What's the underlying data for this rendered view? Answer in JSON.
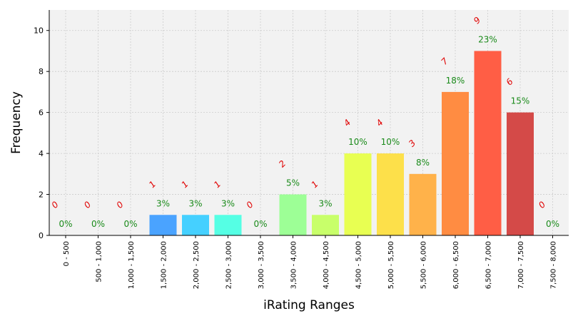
{
  "chart_data": {
    "type": "bar",
    "title": "",
    "xlabel": "iRating Ranges",
    "ylabel": "Frequency",
    "ylim": [
      0,
      11
    ],
    "yticks": [
      0,
      2,
      4,
      6,
      8,
      10
    ],
    "grid": true,
    "categories": [
      "0 - 500",
      "500 - 1,000",
      "1,000 - 1,500",
      "1,500 - 2,000",
      "2,000 - 2,500",
      "2,500 - 3,000",
      "3,000 - 3,500",
      "3,500 - 4,000",
      "4,000 - 4,500",
      "4,500 - 5,000",
      "5,000 - 5,500",
      "5,500 - 6,000",
      "6,000 - 6,500",
      "6,500 - 7,000",
      "7,000 - 7,500",
      "7,500 - 8,000"
    ],
    "values": [
      0,
      0,
      0,
      1,
      1,
      1,
      0,
      2,
      1,
      4,
      4,
      3,
      7,
      9,
      6,
      0
    ],
    "count_labels": [
      "0",
      "0",
      "0",
      "1",
      "1",
      "1",
      "0",
      "2",
      "1",
      "4",
      "4",
      "3",
      "7",
      "9",
      "6",
      "0"
    ],
    "percent_labels": [
      "0%",
      "0%",
      "0%",
      "3%",
      "3%",
      "3%",
      "0%",
      "5%",
      "3%",
      "10%",
      "10%",
      "8%",
      "18%",
      "23%",
      "15%",
      "0%"
    ],
    "colors": [
      "#2c7bff",
      "#2c7bff",
      "#2c7bff",
      "#4aa3ff",
      "#45d0ff",
      "#55ffe4",
      "#7cff9a",
      "#9dff96",
      "#c8ff6a",
      "#e8ff52",
      "#fde04a",
      "#ffb24a",
      "#ff8c42",
      "#ff5e45",
      "#d44a48",
      "#d44a48"
    ]
  }
}
